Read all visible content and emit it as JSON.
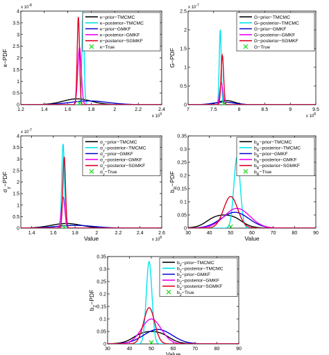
{
  "chart_data": [
    {
      "type": "line",
      "ylabel": "κ−PDF",
      "xlabel": "",
      "xlim": [
        1.2,
        2.4
      ],
      "ylim": [
        0,
        4
      ],
      "xticks": [
        "1.2",
        "1.4",
        "1.6",
        "1.8",
        "2",
        "2.2",
        "2.4"
      ],
      "yticks": [
        "0",
        "0.5",
        "1",
        "1.5",
        "2",
        "2.5",
        "3",
        "3.5",
        "4"
      ],
      "x_exponent": "x 10",
      "x_exponent_power": "9",
      "y_exponent": "x 10",
      "y_exponent_power": "-8",
      "legend_position": "top-right",
      "series": [
        {
          "name": "κ−prior−TMCMC",
          "color": "#000000",
          "shape": "gauss",
          "mu": 1.68,
          "sigma": 0.12,
          "peak": 0.25
        },
        {
          "name": "κ−posterior−TMCMC",
          "color": "#00e5ee",
          "shape": "gauss",
          "mu": 1.73,
          "sigma": 0.009,
          "peak": 4.0
        },
        {
          "name": "κ−prior−GMKF",
          "color": "#0000cc",
          "shape": "gauss",
          "mu": 1.78,
          "sigma": 0.16,
          "peak": 0.16
        },
        {
          "name": "κ−posterior−GMKF",
          "color": "#ee00ee",
          "shape": "gauss",
          "mu": 1.7,
          "sigma": 0.015,
          "peak": 2.45
        },
        {
          "name": "κ−posterior−SGMKF",
          "color": "#dd0022",
          "shape": "gauss",
          "mu": 1.69,
          "sigma": 0.01,
          "peak": 3.75
        }
      ],
      "true_marker": {
        "name": "κ−True",
        "x": 1.7,
        "color": "#33dd33"
      }
    },
    {
      "type": "line",
      "ylabel": "G−PDF",
      "xlabel": "",
      "xlim": [
        7,
        9.5
      ],
      "ylim": [
        0,
        2.5
      ],
      "xticks": [
        "7",
        "7.5",
        "8",
        "8.5",
        "9",
        "9.5"
      ],
      "yticks": [
        "0",
        "0.5",
        "1",
        "1.5",
        "2",
        "2.5"
      ],
      "x_exponent": "x 10",
      "x_exponent_power": "8",
      "y_exponent": "x 10",
      "y_exponent_power": "-7",
      "legend_position": "top-right",
      "series": [
        {
          "name": "G−prior−TMCMC",
          "color": "#000000",
          "shape": "gauss",
          "mu": 7.75,
          "sigma": 0.16,
          "peak": 0.11
        },
        {
          "name": "G−posterior−TMCMC",
          "color": "#00e5ee",
          "shape": "gauss",
          "mu": 7.63,
          "sigma": 0.02,
          "peak": 2.0
        },
        {
          "name": "G−prior−GMKF",
          "color": "#0000cc",
          "shape": "gauss",
          "mu": 7.7,
          "sigma": 0.2,
          "peak": 0.07
        },
        {
          "name": "G−posterior−GMKF",
          "color": "#ee00ee",
          "shape": "gauss",
          "mu": 7.65,
          "sigma": 0.03,
          "peak": 0.58
        },
        {
          "name": "G−posterior−SGMKF",
          "color": "#dd0022",
          "shape": "gauss",
          "mu": 7.67,
          "sigma": 0.025,
          "peak": 1.32
        }
      ],
      "true_marker": {
        "name": "G−True",
        "x": 7.7,
        "color": "#33dd33"
      }
    },
    {
      "type": "line",
      "ylabel": "σ_y−PDF",
      "xlabel": "Value",
      "xlim": [
        1.3,
        2.6
      ],
      "ylim": [
        0,
        4
      ],
      "xticks": [
        "1.4",
        "1.6",
        "1.8",
        "2",
        "2.2",
        "2.4",
        "2.6"
      ],
      "yticks": [
        "0",
        "0.5",
        "1",
        "1.5",
        "2",
        "2.5",
        "3",
        "3.5",
        "4"
      ],
      "x_exponent": "x 10",
      "x_exponent_power": "8",
      "y_exponent": "x 10",
      "y_exponent_power": "-7",
      "legend_position": "top-right",
      "series": [
        {
          "name": "σ_y−prior−TMCMC",
          "color": "#000000",
          "shape": "gauss",
          "mu": 1.72,
          "sigma": 0.14,
          "peak": 0.2
        },
        {
          "name": "σ_y−posterior−TMCMC",
          "color": "#00e5ee",
          "shape": "gauss",
          "mu": 1.69,
          "sigma": 0.012,
          "peak": 3.65
        },
        {
          "name": "σ_y−prior−GMKF",
          "color": "#0000cc",
          "shape": "gauss",
          "mu": 1.8,
          "sigma": 0.17,
          "peak": 0.12
        },
        {
          "name": "σ_y−posterior−GMKF",
          "color": "#ee00ee",
          "shape": "gauss",
          "mu": 1.69,
          "sigma": 0.016,
          "peak": 1.35
        },
        {
          "name": "σ_y−posterior−SGMKF",
          "color": "#dd0022",
          "shape": "gauss",
          "mu": 1.7,
          "sigma": 0.012,
          "peak": 3.1
        }
      ],
      "true_marker": {
        "name": "σ_y−True",
        "x": 1.7,
        "color": "#33dd33"
      }
    },
    {
      "type": "line",
      "ylabel": "b_R−PDF",
      "xlabel": "Value",
      "xlim": [
        30,
        90
      ],
      "ylim": [
        0,
        0.35
      ],
      "xticks": [
        "30",
        "40",
        "50",
        "60",
        "70",
        "80",
        "90"
      ],
      "yticks": [
        "0",
        "0.05",
        "0.1",
        "0.15",
        "0.2",
        "0.25",
        "0.3",
        "0.35"
      ],
      "legend_position": "top-right",
      "series": [
        {
          "name": "b_R−prior−TMCMC",
          "color": "#000000",
          "shape": "box",
          "lo": 39,
          "hi": 55,
          "level": 0.054,
          "ramp": 2.5
        },
        {
          "name": "b_R−posterior−TMCMC",
          "color": "#00e5ee",
          "shape": "gauss",
          "mu": 53,
          "sigma": 1.5,
          "peak": 0.27
        },
        {
          "name": "b_R−prior−GMKF",
          "color": "#0000cc",
          "shape": "gauss",
          "mu": 52,
          "sigma": 6.5,
          "peak": 0.06
        },
        {
          "name": "b_R−posterior−GMKF",
          "color": "#ee00ee",
          "shape": "gauss",
          "mu": 53,
          "sigma": 6,
          "peak": 0.075
        },
        {
          "name": "b_R−posterior−SGMKF",
          "color": "#dd0022",
          "shape": "gauss",
          "mu": 50,
          "sigma": 3.3,
          "peak": 0.12
        }
      ],
      "true_marker": {
        "name": "b_R−True",
        "x": 50,
        "color": "#33dd33"
      }
    },
    {
      "type": "line",
      "ylabel": "b_Z−PDF",
      "xlabel": "Value",
      "xlim": [
        30,
        90
      ],
      "ylim": [
        0,
        0.35
      ],
      "xticks": [
        "30",
        "40",
        "50",
        "60",
        "70",
        "80",
        "90"
      ],
      "yticks": [
        "0",
        "0.05",
        "0.1",
        "0.15",
        "0.2",
        "0.25",
        "0.3",
        "0.35"
      ],
      "legend_position": "top-right",
      "series": [
        {
          "name": "b_Z−prior−TMCMC",
          "color": "#000000",
          "shape": "box",
          "lo": 42,
          "hi": 58,
          "level": 0.054,
          "ramp": 2.5
        },
        {
          "name": "b_Z−posterior−TMCMC",
          "color": "#00e5ee",
          "shape": "gauss",
          "mu": 49,
          "sigma": 1.3,
          "peak": 0.33
        },
        {
          "name": "b_Z−prior−GMKF",
          "color": "#0000cc",
          "shape": "gauss",
          "mu": 53,
          "sigma": 6.5,
          "peak": 0.058
        },
        {
          "name": "b_Z−posterior−GMKF",
          "color": "#ee00ee",
          "shape": "gauss",
          "mu": 50,
          "sigma": 4.5,
          "peak": 0.1
        },
        {
          "name": "b_Z−posterior−SGMKF",
          "color": "#dd0022",
          "shape": "gauss",
          "mu": 49,
          "sigma": 2.5,
          "peak": 0.145
        }
      ],
      "true_marker": {
        "name": "b_Z−True",
        "x": 50,
        "color": "#33dd33"
      }
    }
  ]
}
